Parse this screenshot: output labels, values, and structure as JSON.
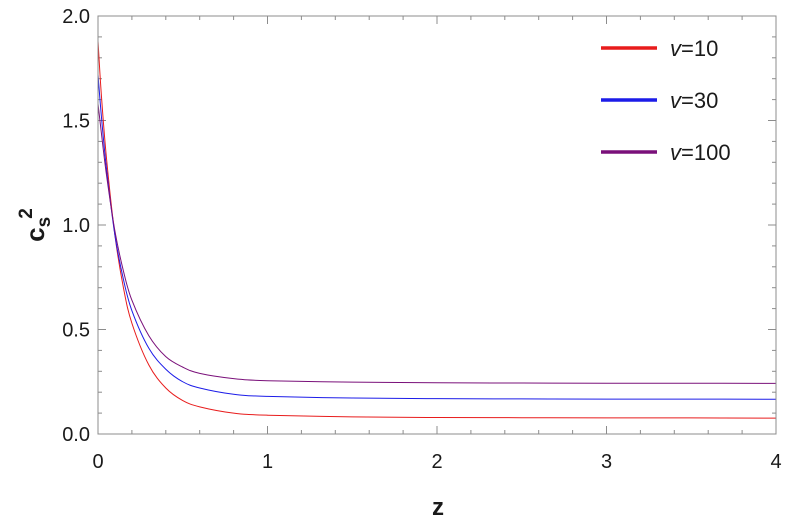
{
  "chart_data": {
    "type": "line",
    "title": "",
    "xlabel": "z",
    "ylabel_main": "c",
    "ylabel_sub": "s",
    "ylabel_sup": "2",
    "xlim": [
      0,
      4
    ],
    "ylim": [
      0,
      2
    ],
    "x_ticks": [
      0,
      1,
      2,
      3,
      4
    ],
    "x_tick_labels": [
      "0",
      "1",
      "2",
      "3",
      "4"
    ],
    "y_ticks": [
      0,
      0.5,
      1,
      1.5,
      2
    ],
    "y_tick_labels": [
      "0.0",
      "0.5",
      "1.0",
      "1.5",
      "2.0"
    ],
    "grid": false,
    "legend_position": "top-right",
    "x": [
      0,
      0.02,
      0.05,
      0.1,
      0.15,
      0.2,
      0.3,
      0.4,
      0.5,
      0.6,
      0.8,
      1.0,
      1.5,
      2.0,
      2.5,
      3.0,
      3.5,
      4.0
    ],
    "series": [
      {
        "name": "v=10",
        "legend_var": "v",
        "legend_value": "=10",
        "color": "#e81c1c",
        "values": [
          1.88,
          1.62,
          1.32,
          0.95,
          0.7,
          0.53,
          0.33,
          0.22,
          0.16,
          0.13,
          0.1,
          0.09,
          0.082,
          0.079,
          0.078,
          0.077,
          0.077,
          0.076
        ]
      },
      {
        "name": "v=30",
        "legend_var": "v",
        "legend_value": "=30",
        "color": "#1c1ce8",
        "values": [
          1.72,
          1.52,
          1.27,
          0.95,
          0.74,
          0.59,
          0.41,
          0.31,
          0.25,
          0.22,
          0.19,
          0.18,
          0.172,
          0.169,
          0.168,
          0.167,
          0.167,
          0.166
        ]
      },
      {
        "name": "v=100",
        "legend_var": "v",
        "legend_value": "=100",
        "color": "#7a107a",
        "values": [
          1.58,
          1.44,
          1.24,
          0.97,
          0.78,
          0.64,
          0.47,
          0.37,
          0.32,
          0.29,
          0.265,
          0.255,
          0.248,
          0.245,
          0.244,
          0.243,
          0.243,
          0.242
        ]
      }
    ]
  }
}
